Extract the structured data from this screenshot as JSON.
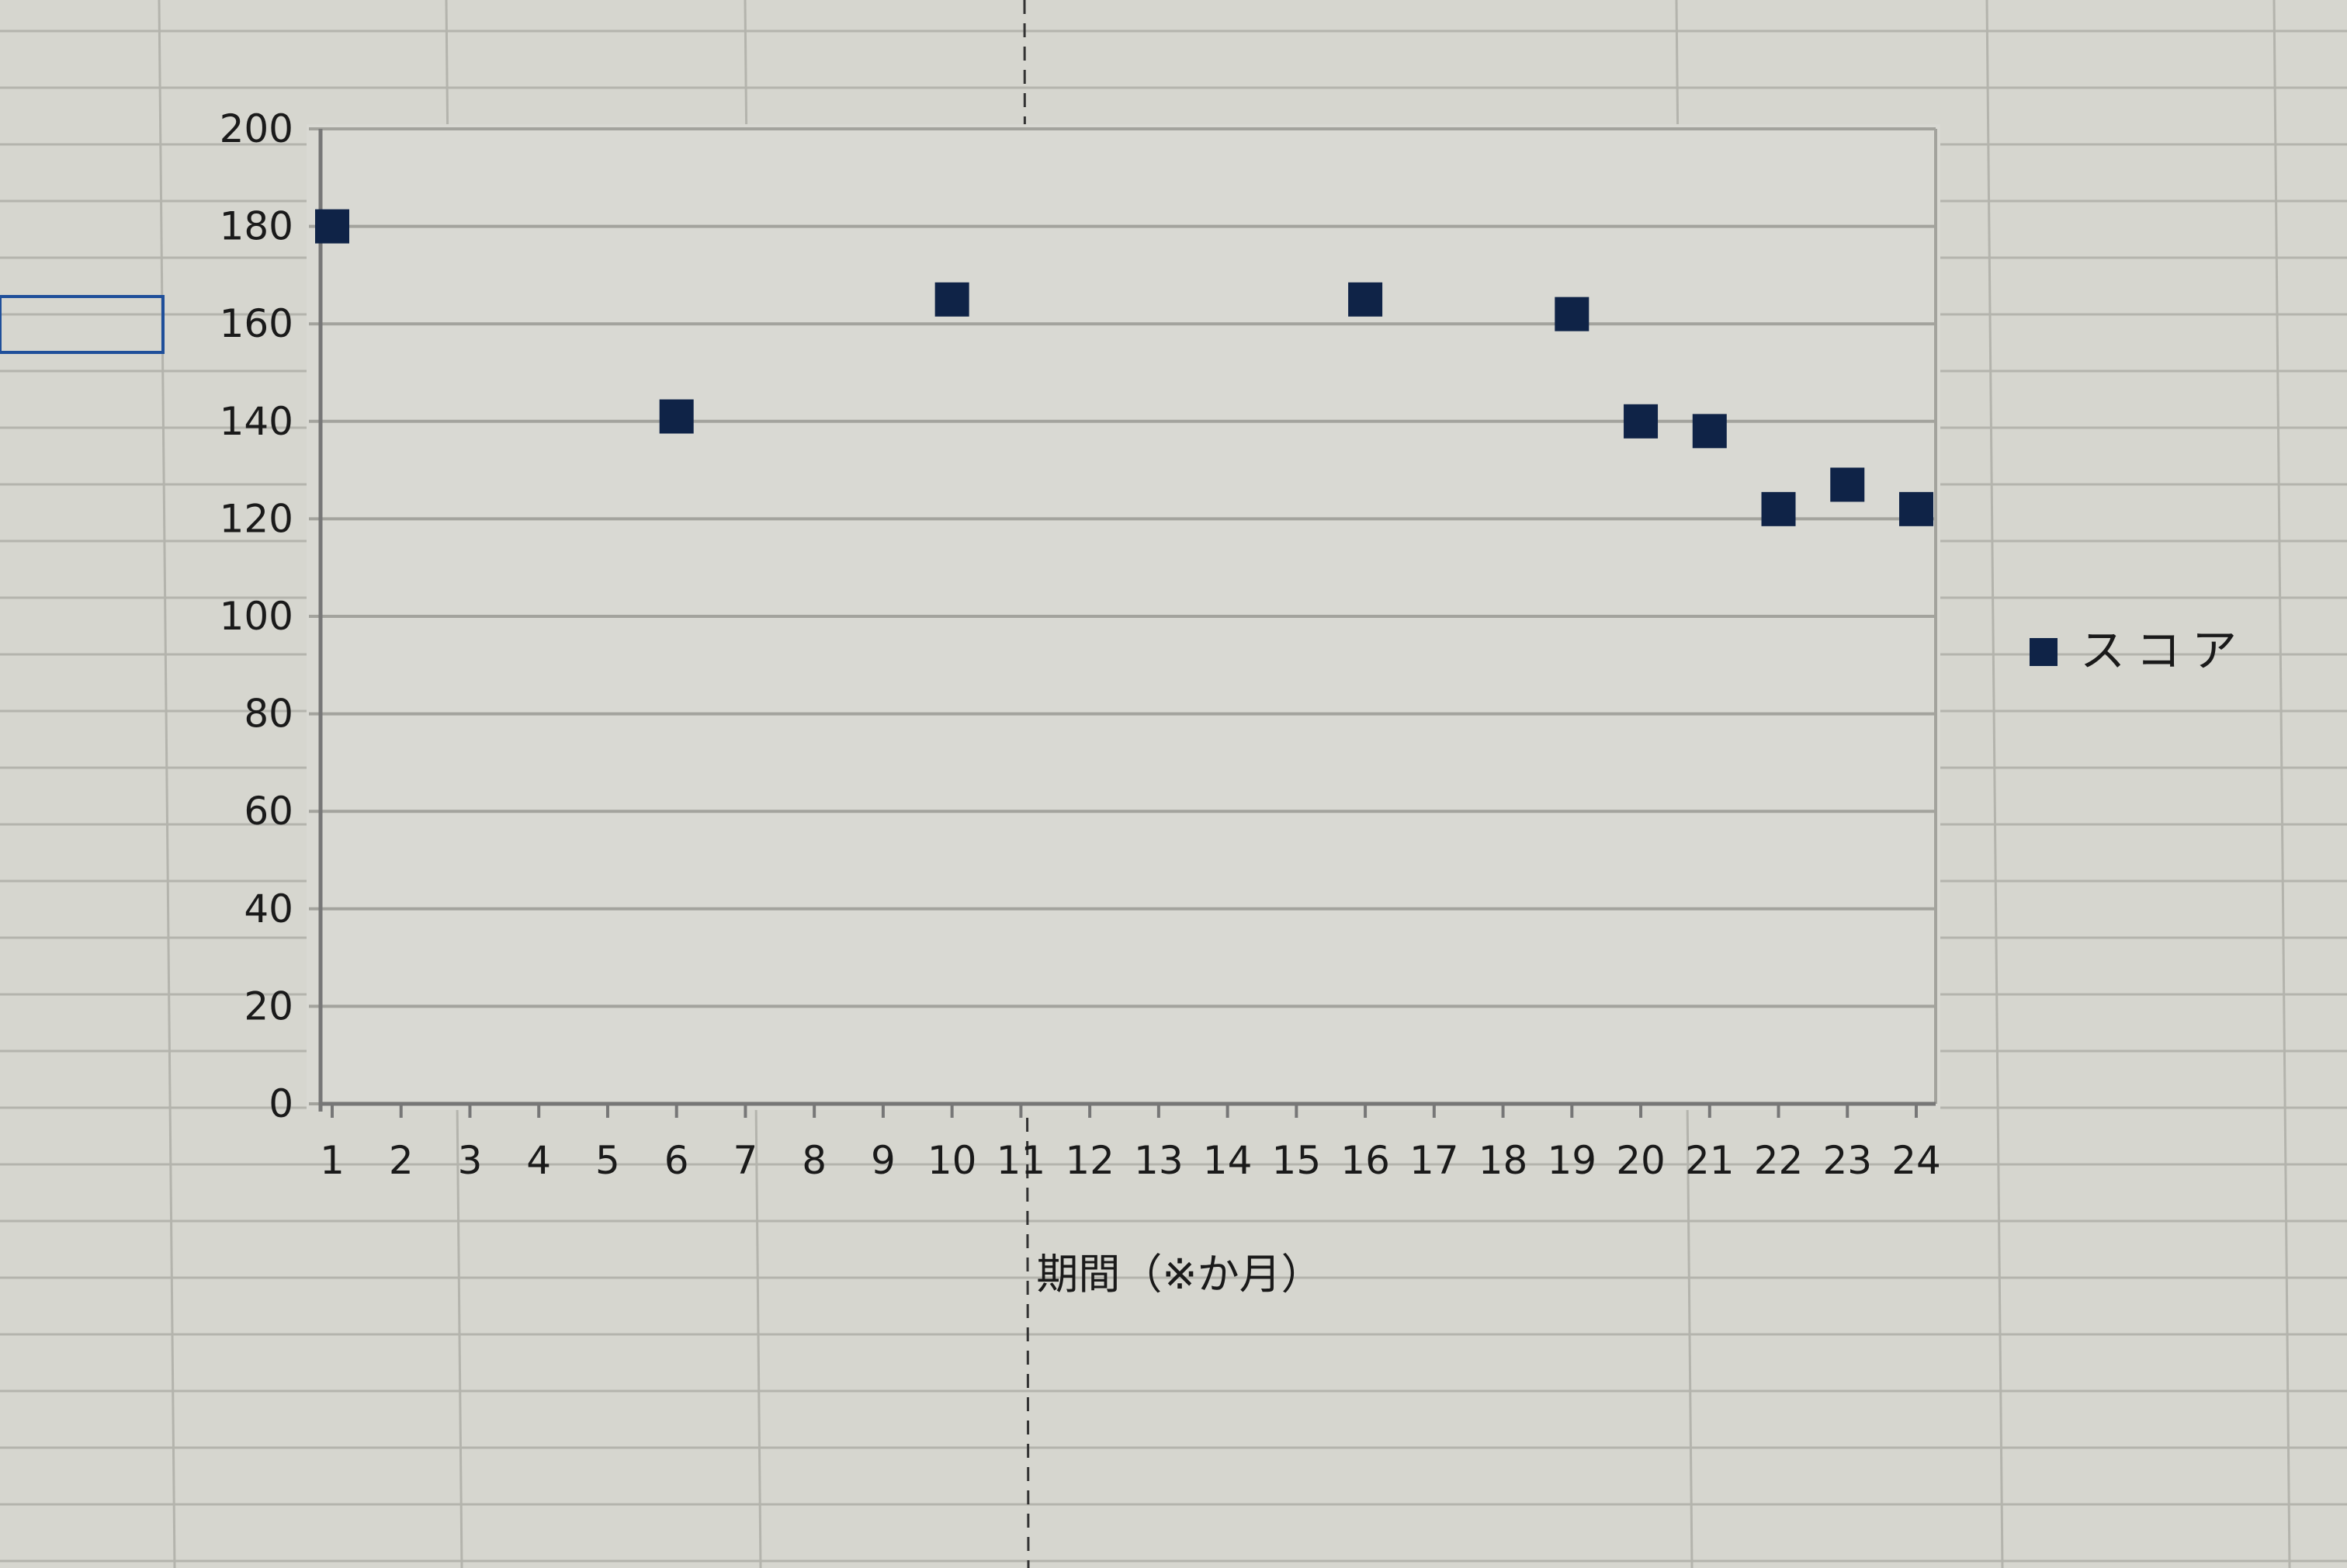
{
  "chart_data": {
    "type": "scatter",
    "title": "",
    "xlabel": "期間（※か月）",
    "ylabel": "",
    "x_ticks": [
      1,
      2,
      3,
      4,
      5,
      6,
      7,
      8,
      9,
      10,
      11,
      12,
      13,
      14,
      15,
      16,
      17,
      18,
      19,
      20,
      21,
      22,
      23,
      24
    ],
    "y_ticks": [
      0,
      20,
      40,
      60,
      80,
      100,
      120,
      140,
      160,
      180,
      200
    ],
    "xlim": [
      1,
      24
    ],
    "ylim": [
      0,
      200
    ],
    "grid": "horizontal",
    "legend_position": "right",
    "series": [
      {
        "name": "スコア",
        "color": "#0f2347",
        "marker": "square",
        "x": [
          1,
          6,
          10,
          16,
          19,
          20,
          21,
          22,
          23,
          24
        ],
        "y": [
          180,
          141,
          165,
          165,
          162,
          140,
          138,
          122,
          127,
          122
        ]
      }
    ]
  },
  "colors": {
    "background": "#d6d6cf",
    "gridline": "#a9a9a3",
    "marker": "#0f2347"
  }
}
